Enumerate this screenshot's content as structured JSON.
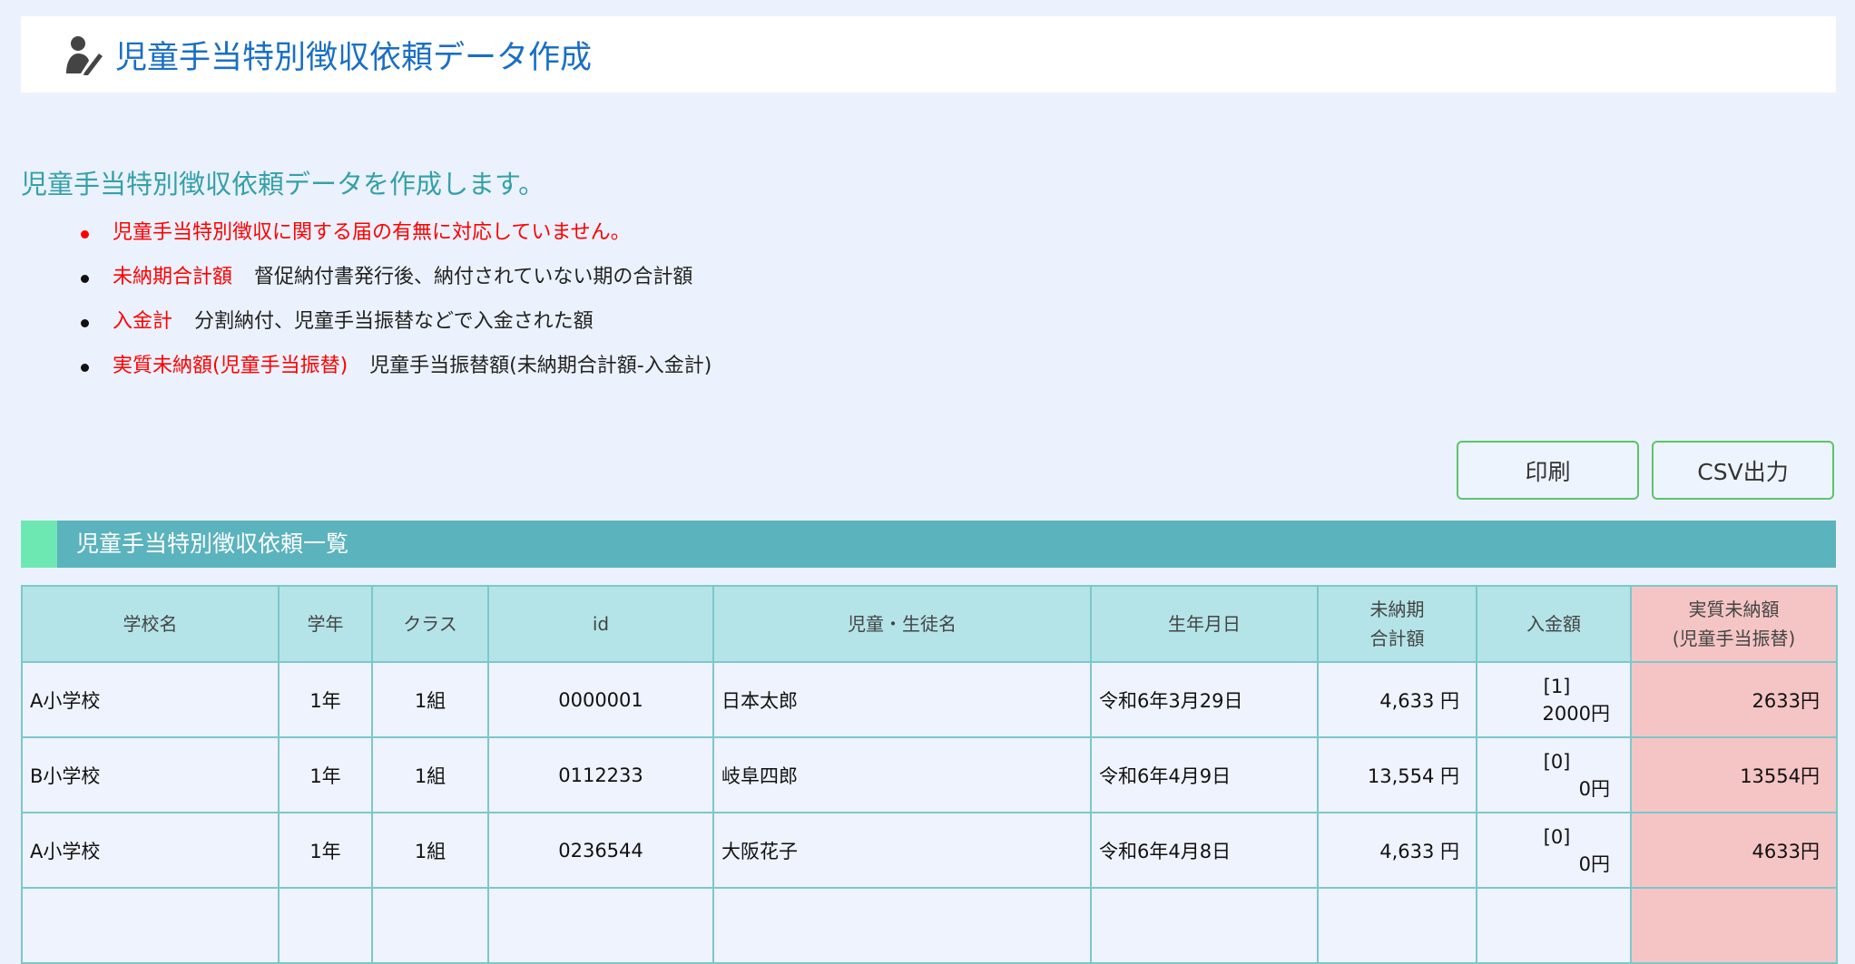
{
  "header": {
    "title": "児童手当特別徴収依頼データ作成",
    "icon": "user-edit-icon"
  },
  "intro": "児童手当特別徴収依頼データを作成します。",
  "notes": [
    {
      "term": "児童手当特別徴収に関する届の有無に対応していません。",
      "desc": ""
    },
    {
      "term": "未納期合計額",
      "desc": "督促納付書発行後、納付されていない期の合計額"
    },
    {
      "term": "入金計",
      "desc": "分割納付、児童手当振替などで入金された額"
    },
    {
      "term": "実質未納額(児童手当振替)",
      "desc": "児童手当振替額(未納期合計額-入金計)"
    }
  ],
  "buttons": {
    "print": "印刷",
    "csv": "CSV出力"
  },
  "section": {
    "title": "児童手当特別徴収依頼一覧"
  },
  "colors": {
    "accent_green": "#6de8b2",
    "section_bar": "#5bb3bd",
    "highlight": "#f5c5c5",
    "title_blue": "#1a6fc4",
    "warning_red": "#ff0000"
  },
  "table": {
    "headers": [
      "学校名",
      "学年",
      "クラス",
      "id",
      "児童・生徒名",
      "生年月日",
      "未納期",
      "合計額",
      "入金額",
      "実質未納額",
      "(児童手当振替)"
    ],
    "rows": [
      {
        "school": "A小学校",
        "grade": "1年",
        "class": "1組",
        "id": "0000001",
        "name": "日本太郎",
        "birth": "令和6年3月29日",
        "unpaid": "4,633 円",
        "count": "[1]",
        "paid": "2000円",
        "actual": "2633円"
      },
      {
        "school": "B小学校",
        "grade": "1年",
        "class": "1組",
        "id": "0112233",
        "name": "岐阜四郎",
        "birth": "令和6年4月9日",
        "unpaid": "13,554 円",
        "count": "[0]",
        "paid": "0円",
        "actual": "13554円"
      },
      {
        "school": "A小学校",
        "grade": "1年",
        "class": "1組",
        "id": "0236544",
        "name": "大阪花子",
        "birth": "令和6年4月8日",
        "unpaid": "4,633 円",
        "count": "[0]",
        "paid": "0円",
        "actual": "4633円"
      }
    ]
  }
}
